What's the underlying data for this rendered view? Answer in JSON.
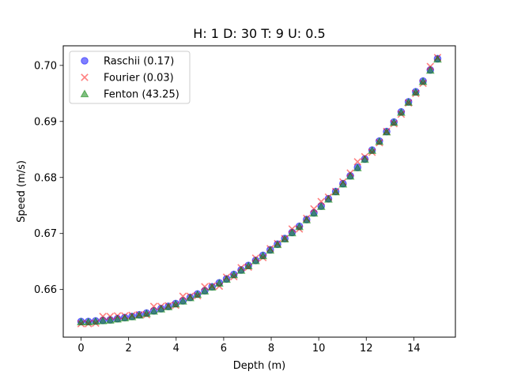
{
  "chart_data": {
    "type": "scatter",
    "title": "H: 1 D: 30 T: 9 U: 0.5",
    "xlabel": "Depth (m)",
    "ylabel": "Speed (m/s)",
    "xlim": [
      -0.75,
      15.75
    ],
    "ylim": [
      0.6515,
      0.7035
    ],
    "xticks": [
      0,
      2,
      4,
      6,
      8,
      10,
      12,
      14
    ],
    "yticks": [
      0.66,
      0.67,
      0.68,
      0.69,
      0.7
    ],
    "ytick_labels": [
      "0.66",
      "0.67",
      "0.68",
      "0.69",
      "0.70"
    ],
    "grid": false,
    "legend_position": "top-left",
    "x": [
      0.0,
      0.306,
      0.612,
      0.918,
      1.224,
      1.531,
      1.837,
      2.143,
      2.449,
      2.755,
      3.061,
      3.367,
      3.673,
      3.98,
      4.286,
      4.592,
      4.898,
      5.204,
      5.51,
      5.816,
      6.122,
      6.429,
      6.735,
      7.041,
      7.347,
      7.653,
      7.959,
      8.265,
      8.571,
      8.878,
      9.184,
      9.49,
      9.796,
      10.102,
      10.408,
      10.714,
      11.02,
      11.327,
      11.633,
      11.939,
      12.245,
      12.551,
      12.857,
      13.163,
      13.469,
      13.776,
      14.082,
      14.388,
      14.694,
      15.0
    ],
    "series": [
      {
        "name": "Raschii (0.17)",
        "marker": "circle",
        "color": "#0000ff",
        "y": [
          0.6543,
          0.6543,
          0.6544,
          0.6545,
          0.6546,
          0.6548,
          0.655,
          0.6552,
          0.6555,
          0.6558,
          0.6562,
          0.6566,
          0.657,
          0.6575,
          0.658,
          0.6586,
          0.6592,
          0.6598,
          0.6605,
          0.6612,
          0.6619,
          0.6627,
          0.6635,
          0.6643,
          0.6652,
          0.6661,
          0.6671,
          0.6681,
          0.6691,
          0.6702,
          0.6713,
          0.6725,
          0.6737,
          0.6749,
          0.6762,
          0.6775,
          0.6789,
          0.6803,
          0.6818,
          0.6833,
          0.6849,
          0.6865,
          0.6882,
          0.6899,
          0.6917,
          0.6935,
          0.6953,
          0.6972,
          0.6992,
          0.7012
        ]
      },
      {
        "name": "Fourier (0.03)",
        "marker": "x",
        "color": "#ff0000",
        "y": [
          0.6539,
          0.6539,
          0.654,
          0.6552,
          0.6552,
          0.6553,
          0.6553,
          0.6554,
          0.6555,
          0.6555,
          0.657,
          0.657,
          0.6571,
          0.6572,
          0.6588,
          0.6588,
          0.6589,
          0.6605,
          0.6606,
          0.6606,
          0.6622,
          0.6623,
          0.6639,
          0.664,
          0.6656,
          0.6657,
          0.6673,
          0.6682,
          0.6691,
          0.6708,
          0.6708,
          0.6727,
          0.6744,
          0.6757,
          0.6765,
          0.6775,
          0.6792,
          0.6808,
          0.6828,
          0.6837,
          0.6845,
          0.6862,
          0.6882,
          0.6896,
          0.6913,
          0.6933,
          0.695,
          0.6968,
          0.6998,
          0.7014
        ]
      },
      {
        "name": "Fenton (43.25)",
        "marker": "triangle",
        "color": "#008000",
        "y": [
          0.6542,
          0.6542,
          0.6543,
          0.6544,
          0.6545,
          0.6547,
          0.6549,
          0.6551,
          0.6554,
          0.6557,
          0.6561,
          0.6565,
          0.6569,
          0.6574,
          0.6579,
          0.6585,
          0.6591,
          0.6597,
          0.6604,
          0.6611,
          0.6618,
          0.6626,
          0.6634,
          0.6642,
          0.6651,
          0.666,
          0.667,
          0.668,
          0.669,
          0.6701,
          0.6712,
          0.6724,
          0.6736,
          0.6748,
          0.6761,
          0.6774,
          0.6788,
          0.6802,
          0.6817,
          0.6832,
          0.6848,
          0.6864,
          0.6881,
          0.6898,
          0.6916,
          0.6934,
          0.6952,
          0.6971,
          0.6991,
          0.7011
        ]
      }
    ]
  }
}
